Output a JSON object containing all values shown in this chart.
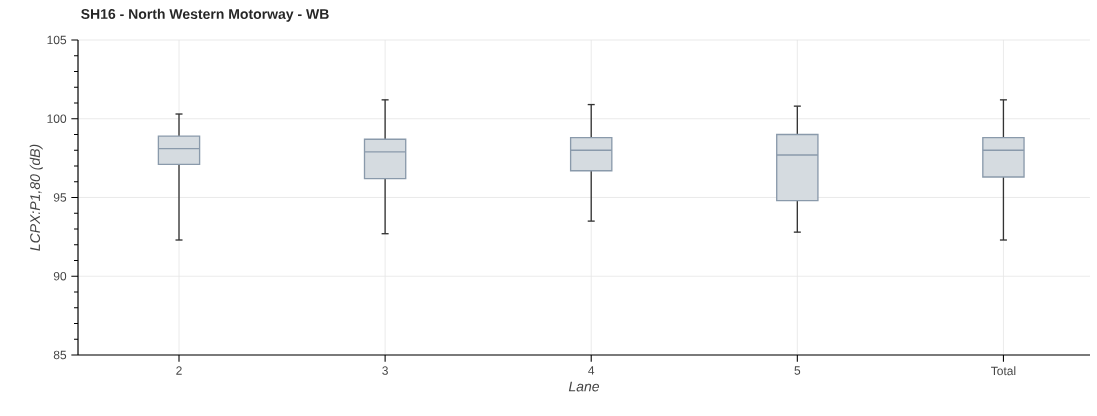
{
  "chart_data": {
    "type": "box",
    "title": "SH16 - North Western Motorway - WB",
    "xlabel": "Lane",
    "ylabel": "LCPX:P1,80 (dB)",
    "categories": [
      "2",
      "3",
      "4",
      "5",
      "Total"
    ],
    "series": [
      {
        "color": "#d5dbe0",
        "boxes": [
          {
            "low": 92.3,
            "q1": 97.1,
            "median": 98.1,
            "q3": 98.9,
            "high": 100.3
          },
          {
            "low": 92.7,
            "q1": 96.2,
            "median": 97.9,
            "q3": 98.7,
            "high": 101.2
          },
          {
            "low": 93.5,
            "q1": 96.7,
            "median": 98.0,
            "q3": 98.8,
            "high": 100.9
          },
          {
            "low": 92.8,
            "q1": 94.8,
            "median": 97.7,
            "q3": 99.0,
            "high": 100.8
          },
          {
            "low": 92.3,
            "q1": 96.3,
            "median": 98.0,
            "q3": 98.8,
            "high": 101.2
          }
        ]
      }
    ],
    "ylim": [
      85,
      105
    ],
    "yticks": [
      85,
      90,
      95,
      100,
      105
    ],
    "grid": true
  }
}
